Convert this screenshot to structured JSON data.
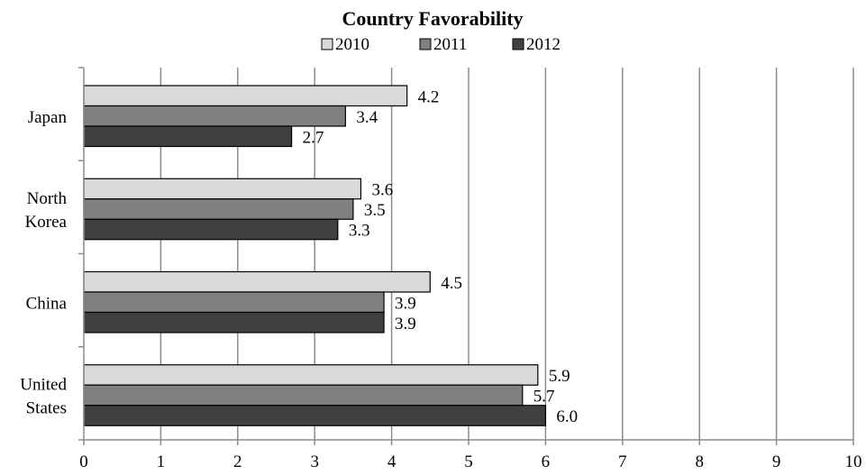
{
  "chart_data": {
    "type": "bar",
    "orientation": "horizontal",
    "title": "Country Favorability",
    "categories": [
      "Japan",
      "North Korea",
      "China",
      "United States"
    ],
    "category_lines": [
      [
        "Japan"
      ],
      [
        "North",
        "Korea"
      ],
      [
        "China"
      ],
      [
        "United",
        "States"
      ]
    ],
    "series": [
      {
        "name": "2010",
        "values": [
          4.2,
          3.6,
          4.5,
          5.9
        ],
        "labels": [
          "4.2",
          "3.6",
          "4.5",
          "5.9"
        ],
        "color": "#d9d9d9"
      },
      {
        "name": "2011",
        "values": [
          3.4,
          3.5,
          3.9,
          5.7
        ],
        "labels": [
          "3.4",
          "3.5",
          "3.9",
          "5.7"
        ],
        "color": "#808080"
      },
      {
        "name": "2012",
        "values": [
          2.7,
          3.3,
          3.9,
          6.0
        ],
        "labels": [
          "2.7",
          "3.3",
          "3.9",
          "6.0"
        ],
        "color": "#404040"
      }
    ],
    "xlim": [
      0,
      10
    ],
    "xticks": [
      "0",
      "1",
      "2",
      "3",
      "4",
      "5",
      "6",
      "7",
      "8",
      "9",
      "10"
    ],
    "xlabel": "",
    "ylabel": "",
    "grid": "vertical",
    "legend": "top-center"
  }
}
